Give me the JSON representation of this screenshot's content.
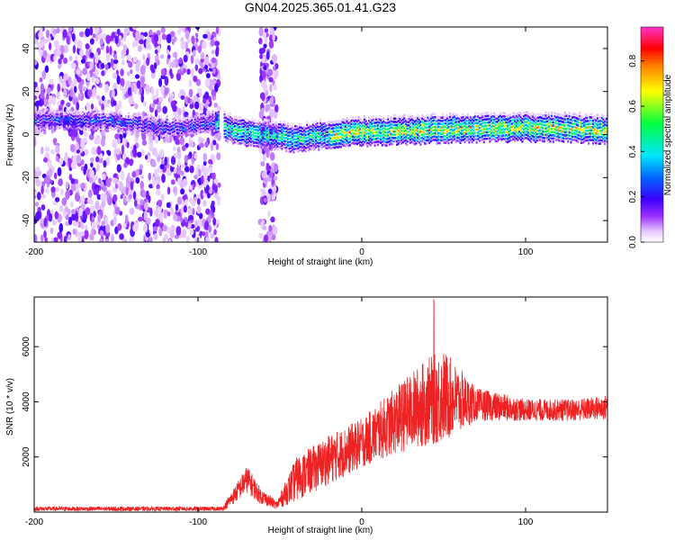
{
  "title": "GN04.2025.365.01.41.G23",
  "chart_data": [
    {
      "type": "heatmap",
      "name": "spectrogram",
      "xlabel": "Height of straight line (km)",
      "ylabel": "Frequency (Hz)",
      "xlim": [
        -200,
        150
      ],
      "ylim": [
        -50,
        50
      ],
      "xticks": [
        -200,
        -100,
        0,
        100
      ],
      "yticks": [
        -40,
        -20,
        0,
        20,
        40
      ],
      "colorbar": {
        "label": "Normalized spectral amplitude",
        "range": [
          0,
          0.95
        ],
        "ticks": [
          0.0,
          0.2,
          0.4,
          0.6,
          0.8
        ]
      },
      "ridge": {
        "description_points": [
          {
            "x": -200,
            "y": 7
          },
          {
            "x": -150,
            "y": 6
          },
          {
            "x": -130,
            "y": 4
          },
          {
            "x": -110,
            "y": 3
          },
          {
            "x": -90,
            "y": 6
          },
          {
            "x": -80,
            "y": 2
          },
          {
            "x": -60,
            "y": 0
          },
          {
            "x": -40,
            "y": -2
          },
          {
            "x": -20,
            "y": 0
          },
          {
            "x": 0,
            "y": 1
          },
          {
            "x": 40,
            "y": 2
          },
          {
            "x": 80,
            "y": 3
          },
          {
            "x": 120,
            "y": 3
          },
          {
            "x": 150,
            "y": 2
          }
        ],
        "peak_amplitude_min_x": -20
      },
      "noise_regions": [
        {
          "from": -200,
          "to": -87
        },
        {
          "from": -62,
          "to": -52
        }
      ]
    },
    {
      "type": "line",
      "name": "snr",
      "xlabel": "Height of straight line (km)",
      "ylabel": "SNR (10 * v/v)",
      "xlim": [
        -200,
        150
      ],
      "ylim": [
        0,
        7800
      ],
      "xticks": [
        -200,
        -100,
        0,
        100
      ],
      "yticks": [
        2000,
        4000,
        6000
      ],
      "color": "#ee2222",
      "envelope": [
        {
          "x": -200,
          "mean": 120,
          "spread": 80
        },
        {
          "x": -85,
          "mean": 120,
          "spread": 80
        },
        {
          "x": -78,
          "mean": 600,
          "spread": 300
        },
        {
          "x": -70,
          "mean": 1200,
          "spread": 500
        },
        {
          "x": -62,
          "mean": 600,
          "spread": 300
        },
        {
          "x": -52,
          "mean": 250,
          "spread": 150
        },
        {
          "x": -40,
          "mean": 1200,
          "spread": 800
        },
        {
          "x": -20,
          "mean": 1900,
          "spread": 900
        },
        {
          "x": 0,
          "mean": 2500,
          "spread": 900
        },
        {
          "x": 20,
          "mean": 3300,
          "spread": 1200
        },
        {
          "x": 40,
          "mean": 4000,
          "spread": 1600
        },
        {
          "x": 50,
          "mean": 4200,
          "spread": 1700
        },
        {
          "x": 70,
          "mean": 3900,
          "spread": 600
        },
        {
          "x": 100,
          "mean": 3700,
          "spread": 400
        },
        {
          "x": 130,
          "mean": 3700,
          "spread": 400
        },
        {
          "x": 150,
          "mean": 3800,
          "spread": 450
        }
      ],
      "peak": {
        "x": 44,
        "y": 7700
      }
    }
  ]
}
